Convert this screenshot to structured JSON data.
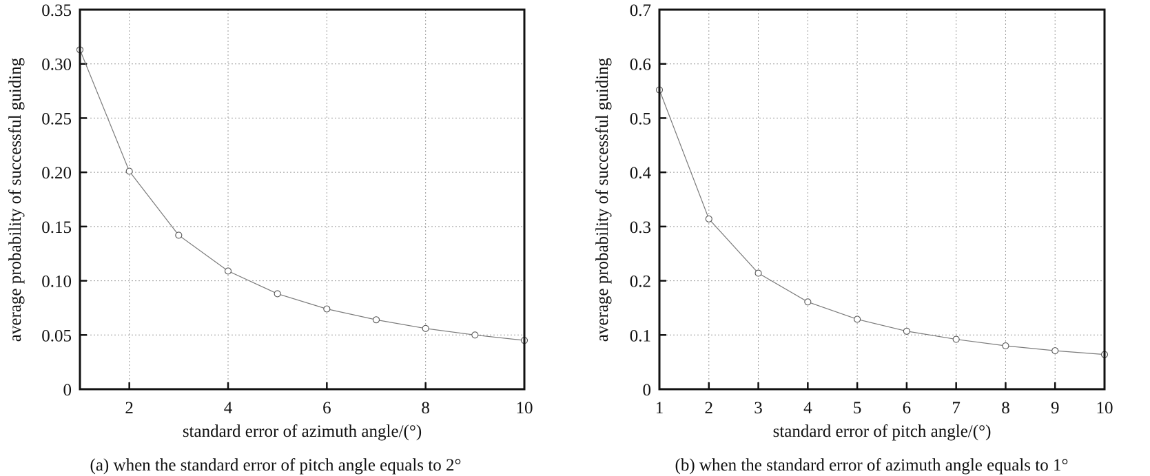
{
  "chart_data": [
    {
      "type": "line",
      "caption": "(a) when the standard error of pitch angle equals to 2°",
      "xlabel": "standard error of azimuth angle/(°)",
      "ylabel": "average probability of successful guiding",
      "xlim": [
        1,
        10
      ],
      "ylim": [
        0,
        0.35
      ],
      "x_ticks": [
        2,
        4,
        6,
        8,
        10
      ],
      "x_tick_labels": [
        "2",
        "4",
        "6",
        "8",
        "10"
      ],
      "y_ticks": [
        0,
        0.05,
        0.1,
        0.15,
        0.2,
        0.25,
        0.3,
        0.35
      ],
      "y_tick_labels": [
        "0",
        "0.05",
        "0.10",
        "0.15",
        "0.20",
        "0.25",
        "0.30",
        "0.35"
      ],
      "grid": true,
      "marker": "open-circle",
      "x": [
        1,
        2,
        3,
        4,
        5,
        6,
        7,
        8,
        9,
        10
      ],
      "series": [
        {
          "values": [
            0.313,
            0.201,
            0.142,
            0.109,
            0.088,
            0.074,
            0.064,
            0.056,
            0.05,
            0.045
          ]
        }
      ]
    },
    {
      "type": "line",
      "caption": "(b) when the standard error of azimuth angle equals to 1°",
      "xlabel": "standard error of pitch angle/(°)",
      "ylabel": "average probability of successful guiding",
      "xlim": [
        1,
        10
      ],
      "ylim": [
        0,
        0.7
      ],
      "x_ticks": [
        1,
        2,
        3,
        4,
        5,
        6,
        7,
        8,
        9,
        10
      ],
      "x_tick_labels": [
        "1",
        "2",
        "3",
        "4",
        "5",
        "6",
        "7",
        "8",
        "9",
        "10"
      ],
      "y_ticks": [
        0,
        0.1,
        0.2,
        0.3,
        0.4,
        0.5,
        0.6,
        0.7
      ],
      "y_tick_labels": [
        "0",
        "0.1",
        "0.2",
        "0.3",
        "0.4",
        "0.5",
        "0.6",
        "0.7"
      ],
      "grid": true,
      "marker": "open-circle",
      "x": [
        1,
        2,
        3,
        4,
        5,
        6,
        7,
        8,
        9,
        10
      ],
      "series": [
        {
          "values": [
            0.552,
            0.314,
            0.214,
            0.161,
            0.129,
            0.107,
            0.092,
            0.08,
            0.071,
            0.064
          ]
        }
      ]
    }
  ]
}
